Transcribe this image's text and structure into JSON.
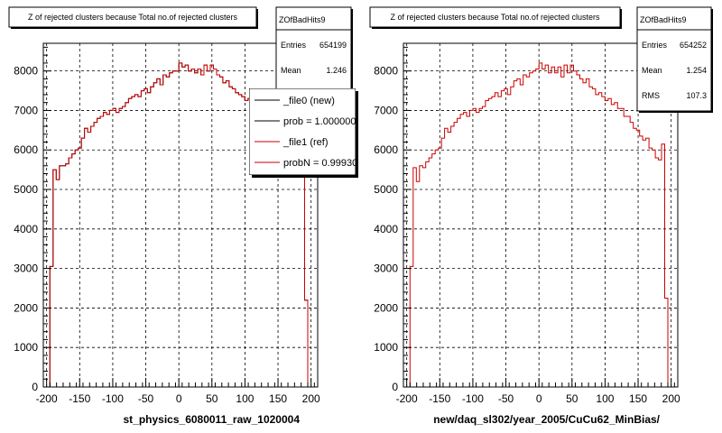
{
  "colors": {
    "new_line": "#000000",
    "ref_line": "#cc0000",
    "grid": "#000000",
    "stat_box_shadow": "#000000"
  },
  "footer_note": "",
  "chart_data": [
    {
      "type": "histogram",
      "title": "Z of rejected clusters  because Total no.of rejected clusters",
      "xlabel": "st_physics_6080011_raw_1020004",
      "ylabel": "",
      "xlim": [
        -205,
        210
      ],
      "ylim": [
        0,
        8700
      ],
      "x_ticks": [
        -200,
        -150,
        -100,
        -50,
        0,
        50,
        100,
        150,
        200
      ],
      "y_ticks": [
        0,
        1000,
        2000,
        3000,
        4000,
        5000,
        6000,
        7000,
        8000
      ],
      "grid": true,
      "stats": {
        "name": "ZOfBadHits9",
        "rows": [
          {
            "label": "Entries",
            "value": "654199"
          },
          {
            "label": "Mean",
            "value": "1.246"
          },
          {
            "label": "RMS",
            "value": ""
          }
        ]
      },
      "legend": {
        "placement": "top-right",
        "entries": [
          {
            "label": "_file0 (new)",
            "color": "#000000"
          },
          {
            "label": "prob = 1.000000",
            "color": "#000000"
          },
          {
            "label": "_file1 (ref)",
            "color": "#cc0000"
          },
          {
            "label": "probN = 0.999300",
            "color": "#cc0000"
          }
        ]
      },
      "bin_edges": [
        -195,
        195
      ],
      "values": [
        3050,
        5500,
        5250,
        5600,
        5600,
        5650,
        5800,
        5900,
        6000,
        6050,
        6300,
        6550,
        6450,
        6600,
        6700,
        6800,
        6850,
        6950,
        6900,
        7000,
        7050,
        6950,
        7050,
        7100,
        7200,
        7300,
        7350,
        7400,
        7350,
        7500,
        7550,
        7450,
        7600,
        7700,
        7800,
        7650,
        7900,
        7850,
        7950,
        8000,
        8000,
        8200,
        8100,
        8150,
        8000,
        8050,
        7950,
        8050,
        7900,
        8150,
        8000,
        8150,
        8050,
        7900,
        7850,
        7700,
        7750,
        7600,
        7550,
        7450,
        7400,
        7350,
        7250,
        7300,
        7200,
        7150,
        7100,
        7050,
        6900,
        6800,
        6700,
        6600,
        6450,
        6400,
        6200,
        6300,
        6100,
        6000,
        5850,
        5800,
        6200,
        2200
      ],
      "series": [
        {
          "name": "_file0 (new)",
          "color": "#000000"
        },
        {
          "name": "_file1 (ref)",
          "color": "#cc0000"
        }
      ]
    },
    {
      "type": "histogram",
      "title": "Z of rejected clusters  because Total no.of rejected clusters",
      "xlabel": "new/daq_sl302/year_2005/CuCu62_MinBias/",
      "ylabel": "",
      "xlim": [
        -205,
        210
      ],
      "ylim": [
        0,
        8700
      ],
      "x_ticks": [
        -200,
        -150,
        -100,
        -50,
        0,
        50,
        100,
        150,
        200
      ],
      "y_ticks": [
        0,
        1000,
        2000,
        3000,
        4000,
        5000,
        6000,
        7000,
        8000
      ],
      "grid": true,
      "stats": {
        "name": "ZOfBadHits9",
        "rows": [
          {
            "label": "Entries",
            "value": "654252"
          },
          {
            "label": "Mean",
            "value": "1.254"
          },
          {
            "label": "RMS",
            "value": "107.3"
          }
        ]
      },
      "bin_edges": [
        -195,
        195
      ],
      "values": [
        3050,
        5550,
        5200,
        5600,
        5550,
        5700,
        5800,
        5900,
        6000,
        6050,
        6300,
        6550,
        6450,
        6600,
        6700,
        6800,
        6900,
        6950,
        6850,
        7000,
        7050,
        6950,
        7050,
        7100,
        7250,
        7300,
        7350,
        7450,
        7350,
        7500,
        7550,
        7400,
        7600,
        7750,
        7800,
        7650,
        7900,
        7850,
        7950,
        8000,
        8050,
        8200,
        8050,
        8150,
        7950,
        8100,
        7950,
        8100,
        7850,
        8150,
        7950,
        8150,
        8000,
        7900,
        7800,
        7700,
        7800,
        7600,
        7550,
        7400,
        7450,
        7350,
        7250,
        7300,
        7150,
        7200,
        7050,
        7050,
        6850,
        6850,
        6700,
        6550,
        6500,
        6350,
        6250,
        6300,
        6050,
        6000,
        5800,
        5750,
        6150,
        2250
      ],
      "series": [
        {
          "name": "",
          "color": "#cc0000"
        }
      ]
    }
  ]
}
